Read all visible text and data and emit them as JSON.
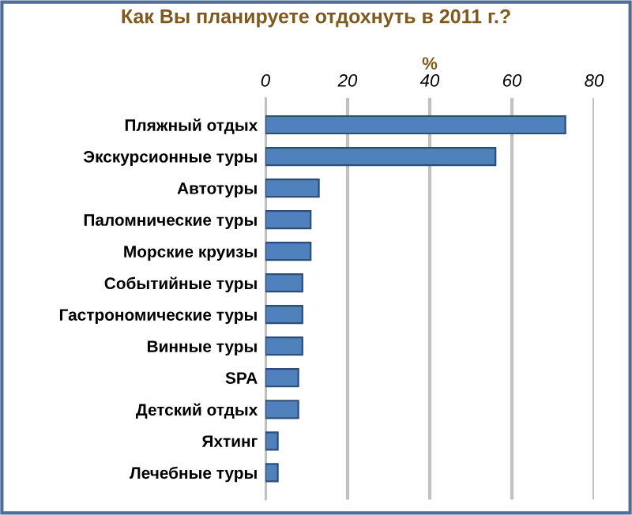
{
  "chart_data": {
    "type": "bar",
    "orientation": "horizontal",
    "title": "Как Вы планируете отдохнуть в 2011 г.?",
    "xlabel": "%",
    "categories": [
      "Пляжный отдых",
      "Экскурсионные туры",
      "Автотуры",
      "Паломнические туры",
      "Морские круизы",
      "Событийные туры",
      "Гастрономические туры",
      "Винные туры",
      "SPA",
      "Детский отдых",
      "Яхтинг",
      "Лечебные туры"
    ],
    "values": [
      73,
      56,
      13,
      11,
      11,
      9,
      9,
      9,
      8,
      8,
      3,
      3
    ],
    "color": "#4f81bd",
    "xlim": [
      0,
      80
    ],
    "xticks": [
      0,
      20,
      40,
      60,
      80
    ],
    "grid": "x"
  }
}
